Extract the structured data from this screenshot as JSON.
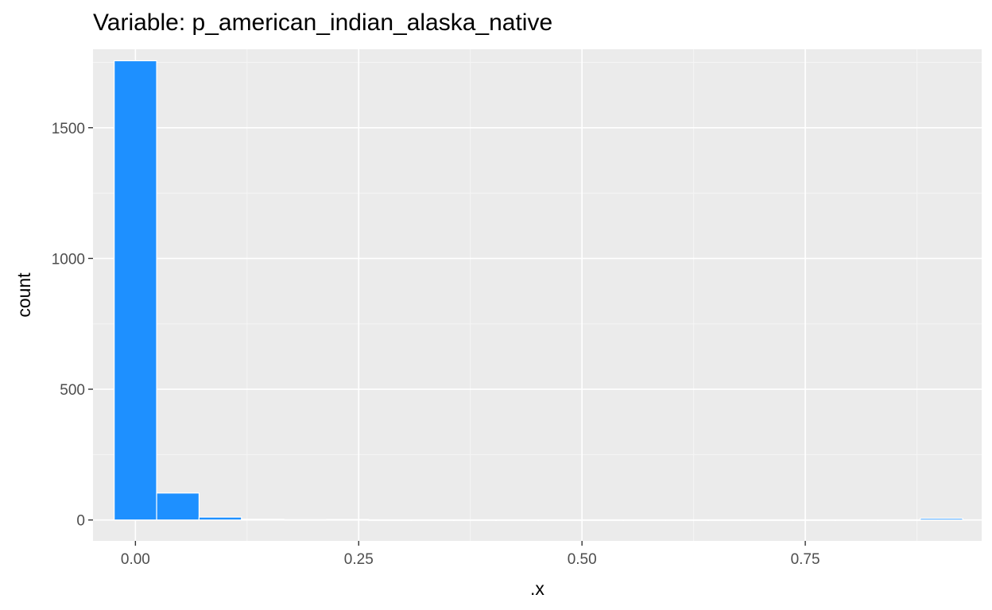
{
  "chart_data": {
    "type": "bar",
    "title": "Variable: p_american_indian_alaska_native",
    "xlabel": ".x",
    "ylabel": "count",
    "xlim": [
      -0.0475,
      0.9475
    ],
    "ylim": [
      -80,
      1800
    ],
    "x_ticks": [
      {
        "value": 0.0,
        "label": "0.00"
      },
      {
        "value": 0.25,
        "label": "0.25"
      },
      {
        "value": 0.5,
        "label": "0.50"
      },
      {
        "value": 0.75,
        "label": "0.75"
      }
    ],
    "y_ticks": [
      {
        "value": 0,
        "label": "0"
      },
      {
        "value": 500,
        "label": "500"
      },
      {
        "value": 1000,
        "label": "1000"
      },
      {
        "value": 1500,
        "label": "1500"
      }
    ],
    "bin_width": 0.0475,
    "bins": [
      {
        "x": 0.0,
        "count": 1756
      },
      {
        "x": 0.0475,
        "count": 103
      },
      {
        "x": 0.095,
        "count": 11
      },
      {
        "x": 0.1425,
        "count": 3
      },
      {
        "x": 0.19,
        "count": 1
      },
      {
        "x": 0.2375,
        "count": 2
      },
      {
        "x": 0.285,
        "count": 0
      },
      {
        "x": 0.3325,
        "count": 0
      },
      {
        "x": 0.38,
        "count": 0
      },
      {
        "x": 0.4275,
        "count": 0
      },
      {
        "x": 0.475,
        "count": 0
      },
      {
        "x": 0.5225,
        "count": 0
      },
      {
        "x": 0.57,
        "count": 0
      },
      {
        "x": 0.6175,
        "count": 0
      },
      {
        "x": 0.665,
        "count": 0
      },
      {
        "x": 0.7125,
        "count": 0
      },
      {
        "x": 0.76,
        "count": 0
      },
      {
        "x": 0.8075,
        "count": 0
      },
      {
        "x": 0.855,
        "count": 0
      },
      {
        "x": 0.9025,
        "count": 6
      }
    ],
    "grid": true,
    "legend": "none",
    "colors": {
      "panel_background": "#ebebeb",
      "grid_major": "#ffffff",
      "grid_minor": "#f5f5f5",
      "bar_fill": "#1e90ff",
      "bar_stroke": "#ffffff",
      "tick_text": "#4d4d4d",
      "axis_title": "#000000"
    }
  }
}
